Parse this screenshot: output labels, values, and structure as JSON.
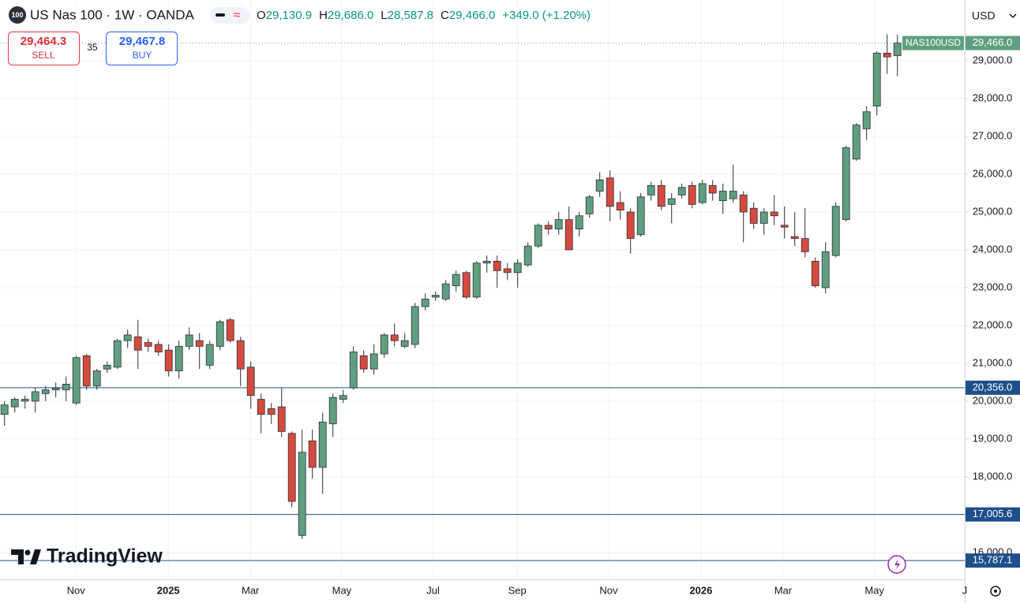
{
  "header": {
    "badge": "100",
    "symbol": "US Nas 100 · 1W · OANDA",
    "ohlc": [
      {
        "label": "O",
        "value": "29,130.9"
      },
      {
        "label": "H",
        "value": "29,686.0"
      },
      {
        "label": "L",
        "value": "28,587.8"
      },
      {
        "label": "C",
        "value": "29,466.0"
      }
    ],
    "change": "+349.0 (+1.20%)"
  },
  "trade": {
    "sell_price": "29,464.3",
    "sell": "SELL",
    "spread": "35",
    "buy_price": "29,467.8",
    "buy": "BUY"
  },
  "currency": "USD",
  "logo": "TradingView",
  "chart_data": {
    "type": "candlestick",
    "up_color": "#5f9f80",
    "down_color": "#d64a3e",
    "grid": true,
    "open": [
      19650,
      19850,
      20000,
      20000,
      20200,
      20300,
      20300,
      19950,
      21200,
      20400,
      20850,
      20900,
      21600,
      21700,
      21550,
      21500,
      21350,
      20800,
      21450,
      21600,
      20950,
      21450,
      22150,
      21600,
      20900,
      20050,
      19800,
      19850,
      19150,
      16450,
      18950,
      18250,
      19400,
      20050,
      20350,
      21200,
      20850,
      21250,
      21750,
      21450,
      21500,
      22500,
      22750,
      22700,
      23050,
      23400,
      22750,
      23650,
      23700,
      23500,
      23400,
      23600,
      24100,
      24650,
      24550,
      24800,
      24550,
      24950,
      25550,
      25900,
      25250,
      25000,
      24400,
      25450,
      25700,
      25200,
      25450,
      25700,
      25250,
      25700,
      25300,
      25350,
      25450,
      25100,
      24700,
      25000,
      24650,
      24350,
      24300,
      23700,
      23000,
      23850,
      24800,
      26400,
      27200,
      27800,
      29200,
      29130.9
    ],
    "high": [
      20000,
      20100,
      20150,
      20350,
      20400,
      20500,
      20650,
      21200,
      21250,
      20850,
      21050,
      21650,
      21900,
      22150,
      21650,
      21600,
      21500,
      21600,
      21950,
      21800,
      21600,
      22150,
      22200,
      21700,
      21050,
      20200,
      19950,
      20350,
      19200,
      19250,
      19250,
      19700,
      20200,
      20300,
      21450,
      21350,
      21500,
      21800,
      22050,
      21800,
      22600,
      22850,
      22900,
      23200,
      23450,
      23450,
      23700,
      23850,
      23850,
      23650,
      23750,
      24200,
      24700,
      24750,
      25000,
      25150,
      25000,
      25450,
      26050,
      26100,
      25550,
      25100,
      25500,
      25800,
      25850,
      25500,
      25750,
      25800,
      25850,
      25850,
      25750,
      26250,
      25550,
      25250,
      25100,
      25450,
      25150,
      25000,
      25100,
      23800,
      24200,
      25250,
      26750,
      27350,
      27800,
      29250,
      29700,
      29686
    ],
    "low": [
      19350,
      19700,
      19800,
      19700,
      20000,
      20100,
      20000,
      19900,
      20300,
      20300,
      20750,
      20850,
      21400,
      20850,
      21300,
      21200,
      20650,
      20600,
      21350,
      20850,
      20850,
      21350,
      21550,
      20400,
      19800,
      19150,
      19400,
      19050,
      17200,
      16350,
      17950,
      17550,
      19050,
      19950,
      20300,
      20750,
      20700,
      21150,
      21450,
      21400,
      21400,
      22400,
      22650,
      22650,
      22900,
      22700,
      22700,
      23400,
      23000,
      23200,
      23000,
      23550,
      24050,
      24400,
      24400,
      24000,
      24350,
      24850,
      25400,
      24750,
      24800,
      23900,
      24350,
      25300,
      25050,
      24700,
      25350,
      25100,
      25200,
      25300,
      24950,
      25250,
      24200,
      24550,
      24400,
      24650,
      24300,
      24100,
      23800,
      23000,
      22850,
      23800,
      24750,
      26350,
      26900,
      27550,
      28650,
      28587.8
    ],
    "close": [
      19900,
      20050,
      20050,
      20250,
      20300,
      20350,
      20450,
      21150,
      20400,
      20800,
      20950,
      21600,
      21750,
      21350,
      21450,
      21300,
      20800,
      21450,
      21750,
      21450,
      21500,
      22100,
      21600,
      20850,
      20150,
      19650,
      19650,
      19200,
      17350,
      18650,
      18250,
      19450,
      20100,
      20150,
      21300,
      20850,
      21250,
      21750,
      21600,
      21600,
      22500,
      22700,
      22800,
      23100,
      23350,
      22750,
      23650,
      23700,
      23450,
      23400,
      23650,
      24100,
      24650,
      24550,
      24800,
      24000,
      24900,
      25400,
      25850,
      25150,
      25050,
      24300,
      25400,
      25700,
      25150,
      25350,
      25650,
      25200,
      25750,
      25500,
      25550,
      25550,
      25000,
      24700,
      25000,
      24900,
      24600,
      24300,
      23950,
      23050,
      23950,
      25150,
      26700,
      27300,
      27650,
      29200,
      29100,
      29466.0
    ],
    "xlim": [
      -0.4,
      93.6
    ],
    "xticks": [
      {
        "value": 7,
        "label": "Nov"
      },
      {
        "value": 16,
        "label": "2025"
      },
      {
        "value": 24,
        "label": "Mar"
      },
      {
        "value": 32.9,
        "label": "May"
      },
      {
        "value": 41.8,
        "label": "Jul"
      },
      {
        "value": 50,
        "label": "Sep"
      },
      {
        "value": 58.9,
        "label": "Nov"
      },
      {
        "value": 67.9,
        "label": "2026"
      },
      {
        "value": 75.9,
        "label": "Mar"
      },
      {
        "value": 84.8,
        "label": "May"
      },
      {
        "value": 93.6,
        "label": "J"
      }
    ],
    "ylim": [
      15290,
      30604
    ],
    "yticks": [
      {
        "value": 16000,
        "label": "16,000.0"
      },
      {
        "value": 17000,
        "label": "17,000.0"
      },
      {
        "value": 18000,
        "label": "18,000.0"
      },
      {
        "value": 19000,
        "label": "19,000.0"
      },
      {
        "value": 20000,
        "label": "20,000.0"
      },
      {
        "value": 21000,
        "label": "21,000.0"
      },
      {
        "value": 22000,
        "label": "22,000.0"
      },
      {
        "value": 23000,
        "label": "23,000.0"
      },
      {
        "value": 24000,
        "label": "24,000.0"
      },
      {
        "value": 25000,
        "label": "25,000.0"
      },
      {
        "value": 26000,
        "label": "26,000.0"
      },
      {
        "value": 27000,
        "label": "27,000.0"
      },
      {
        "value": 28000,
        "label": "28,000.0"
      },
      {
        "value": 29000,
        "label": "29,000.0"
      }
    ],
    "hlines": [
      {
        "value": 20356,
        "label": "20,356.0"
      },
      {
        "value": 17005.6,
        "label": "17,005.6"
      },
      {
        "value": 15787.1,
        "label": "15,787.1"
      }
    ],
    "last_price": {
      "name": "NAS100USD",
      "value": 29466,
      "label": "29,466.0"
    }
  }
}
